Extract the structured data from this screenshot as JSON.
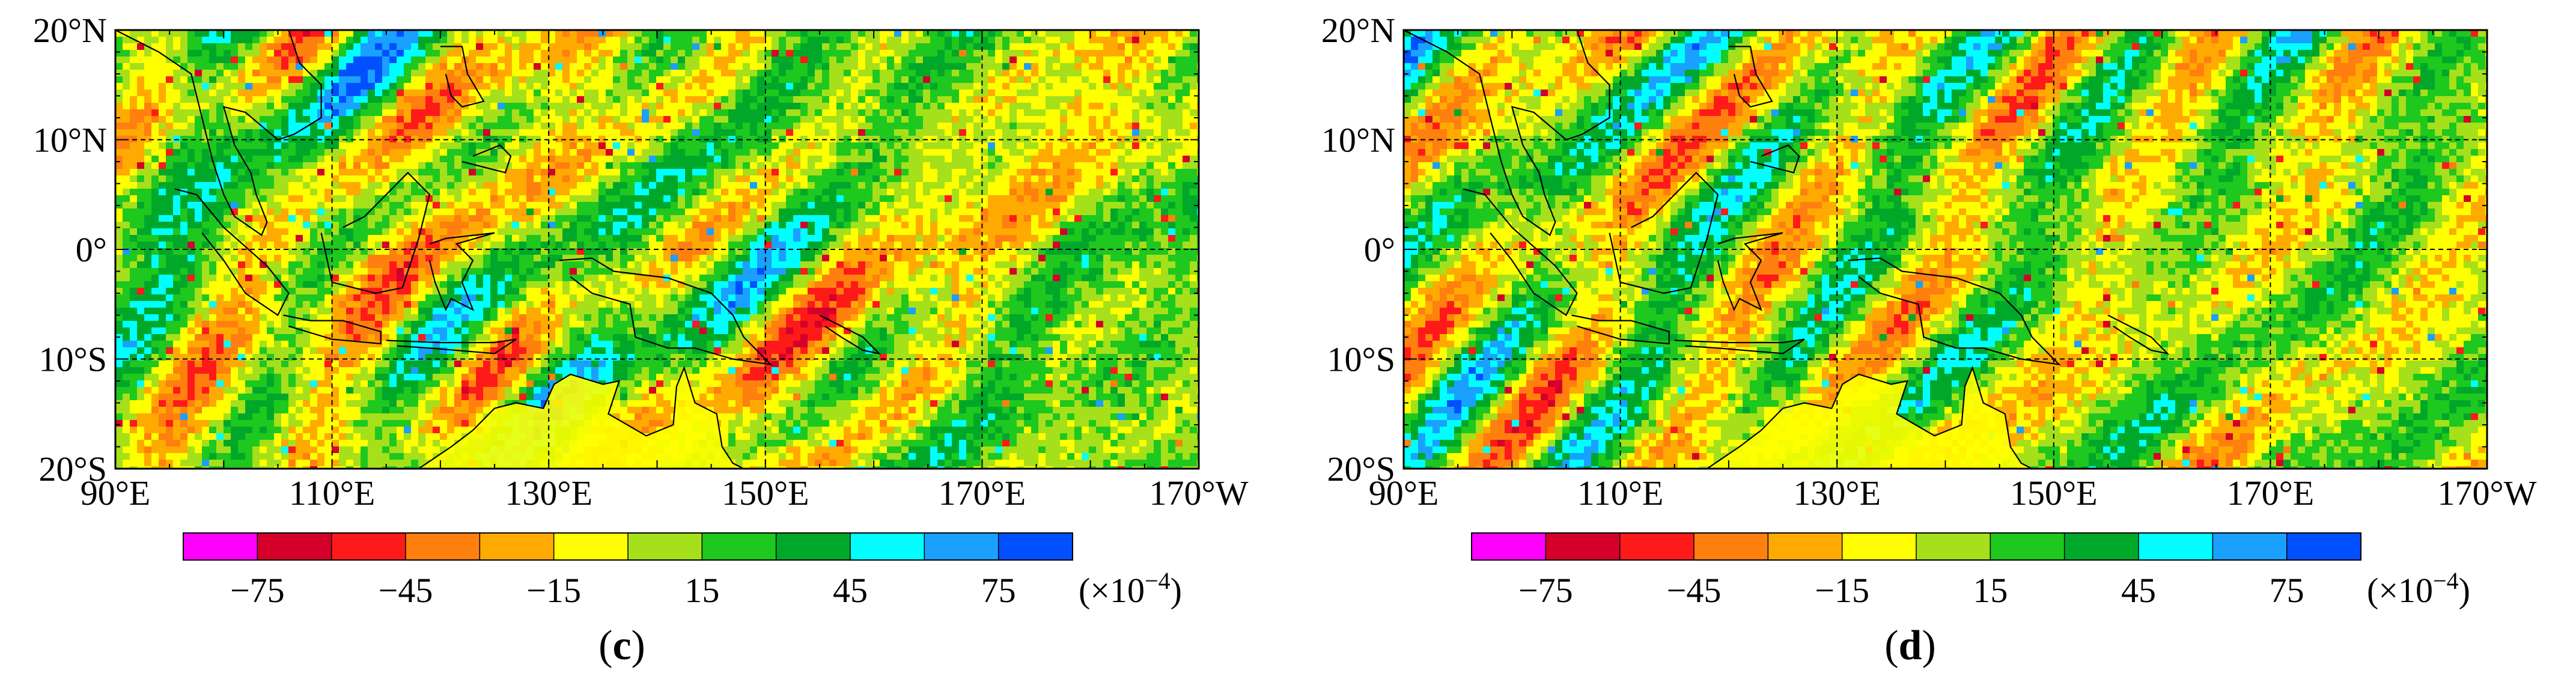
{
  "panels": [
    {
      "id": "c",
      "label": "c"
    },
    {
      "id": "d",
      "label": "d"
    }
  ],
  "map": {
    "lat_labels": [
      "20°N",
      "10°N",
      "0°",
      "10°S",
      "20°S"
    ],
    "lon_labels": [
      "90°E",
      "110°E",
      "130°E",
      "150°E",
      "170°E",
      "170°W"
    ],
    "lat_range": [
      -20,
      20
    ],
    "lon_range": [
      90,
      190
    ],
    "gridlines": "dashed every 20° longitude, 10° latitude"
  },
  "colorbar": {
    "tick_labels": [
      "−75",
      "−45",
      "−15",
      "15",
      "45",
      "75"
    ],
    "unit_label": "(×10",
    "unit_exponent": "−4",
    "unit_close": ")",
    "colors": [
      "#ff00ff",
      "#d4002a",
      "#ff1a1a",
      "#ff7f0f",
      "#ffaa00",
      "#ffff00",
      "#a6e01a",
      "#1ec81e",
      "#00a82a",
      "#00ffff",
      "#1aa0ff",
      "#0050ff"
    ],
    "boundaries": [
      -90,
      -75,
      -60,
      -45,
      -30,
      -15,
      0,
      15,
      30,
      45,
      60,
      75,
      90
    ]
  },
  "colors": {
    "background": "#ffffff",
    "dominant_field": "#a6e01a",
    "land_ne_australia": "#ffff00"
  }
}
